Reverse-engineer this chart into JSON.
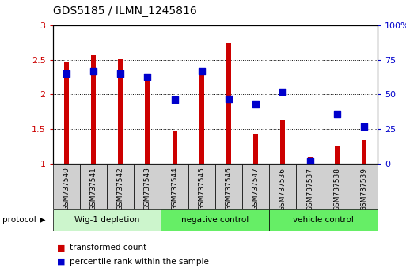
{
  "title": "GDS5185 / ILMN_1245816",
  "samples": [
    "GSM737540",
    "GSM737541",
    "GSM737542",
    "GSM737543",
    "GSM737544",
    "GSM737545",
    "GSM737546",
    "GSM737547",
    "GSM737536",
    "GSM737537",
    "GSM737538",
    "GSM737539"
  ],
  "transformed_count": [
    2.47,
    2.56,
    2.52,
    2.24,
    1.47,
    2.28,
    2.75,
    1.44,
    1.63,
    1.09,
    1.26,
    1.34
  ],
  "percentile_rank": [
    65,
    67,
    65,
    63,
    46,
    67,
    47,
    43,
    52,
    2,
    36,
    27
  ],
  "ylim_left": [
    1.0,
    3.0
  ],
  "ylim_right": [
    0,
    100
  ],
  "yticks_left": [
    1.0,
    1.5,
    2.0,
    2.5,
    3.0
  ],
  "yticks_right": [
    0,
    25,
    50,
    75,
    100
  ],
  "bar_color": "#cc0000",
  "dot_color": "#0000cc",
  "bar_width": 0.18,
  "dot_size": 30,
  "left_tick_color": "#cc0000",
  "right_tick_color": "#0000cc",
  "sample_box_color": "#d0d0d0",
  "group_configs": [
    {
      "start": 0,
      "end": 3,
      "color": "#ccf5cc",
      "label": "Wig-1 depletion"
    },
    {
      "start": 4,
      "end": 7,
      "color": "#66ee66",
      "label": "negative control"
    },
    {
      "start": 8,
      "end": 11,
      "color": "#66ee66",
      "label": "vehicle control"
    }
  ]
}
